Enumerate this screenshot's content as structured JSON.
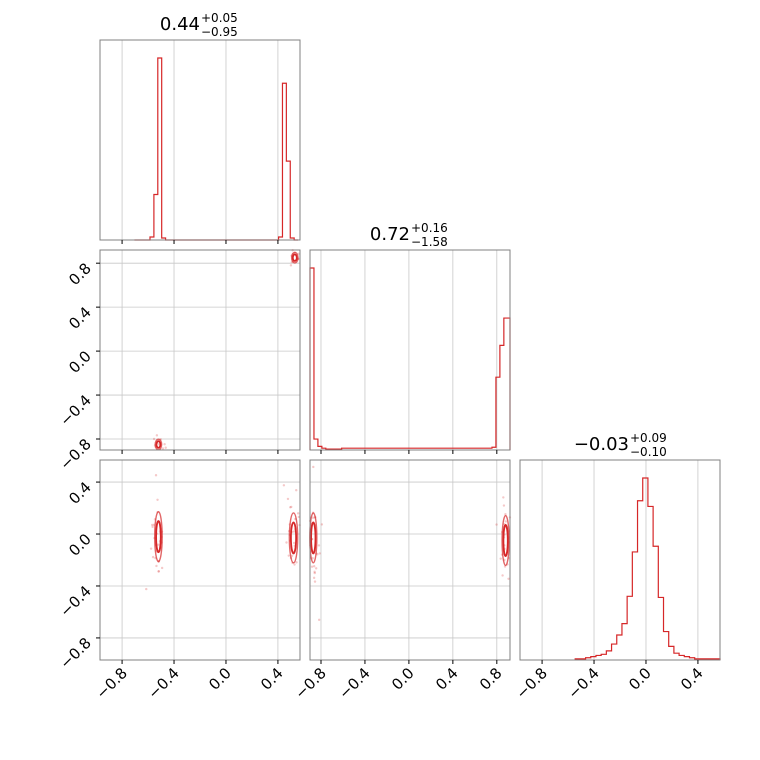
{
  "chart_data": {
    "type": "corner",
    "color": "#d62728",
    "grid": true,
    "params": [
      {
        "title": "0.44",
        "upper": "+0.05",
        "lower": "−0.95",
        "range": [
          -0.97,
          0.57
        ],
        "ticks": [
          -0.8,
          -0.4,
          0.0,
          0.4
        ],
        "tick_labels": [
          "−0.8",
          "−0.4",
          "0.0",
          "0.4"
        ]
      },
      {
        "title": "0.72",
        "upper": "+0.16",
        "lower": "−1.58",
        "range": [
          -0.9,
          0.92
        ],
        "ticks": [
          -0.8,
          -0.4,
          0.0,
          0.4,
          0.8
        ],
        "tick_labels": [
          "−0.8",
          "−0.4",
          "0.0",
          "0.4",
          "0.8"
        ]
      },
      {
        "title": "−0.03",
        "upper": "+0.09",
        "lower": "−0.10",
        "range": [
          -0.97,
          0.57
        ],
        "ticks": [
          -0.8,
          -0.4,
          0.0,
          0.4
        ],
        "tick_labels": [
          "−0.8",
          "−0.4",
          "0.0",
          "0.4"
        ]
      }
    ],
    "histograms": [
      {
        "param": 0,
        "edges": [
          -0.705,
          -0.675,
          -0.645,
          -0.615,
          -0.585,
          -0.555,
          -0.525,
          -0.495,
          -0.465,
          -0.435,
          -0.405,
          0.405,
          0.435,
          0.465,
          0.495,
          0.525,
          0.555
        ],
        "counts": [
          0,
          0,
          0,
          0,
          3,
          45,
          180,
          2,
          0,
          0,
          0,
          3,
          155,
          78,
          2,
          0
        ]
      },
      {
        "param": 1,
        "edges": [
          -0.9,
          -0.864,
          -0.828,
          -0.792,
          -0.756,
          -0.72,
          -0.684,
          -0.648,
          -0.612,
          0.756,
          0.792,
          0.828,
          0.864,
          0.9,
          0.92
        ],
        "counts": [
          200,
          12,
          4,
          2,
          1,
          1,
          1,
          1,
          2,
          3,
          80,
          115,
          145,
          145
        ]
      },
      {
        "param": 2,
        "edges": [
          -0.545,
          -0.505,
          -0.465,
          -0.425,
          -0.385,
          -0.345,
          -0.305,
          -0.265,
          -0.225,
          -0.185,
          -0.145,
          -0.105,
          -0.065,
          -0.025,
          0.015,
          0.055,
          0.095,
          0.135,
          0.175,
          0.215,
          0.255,
          0.295,
          0.335,
          0.375,
          0.415,
          0.455,
          0.495,
          0.535,
          0.57
        ],
        "counts": [
          1,
          1,
          2,
          3,
          4,
          5,
          8,
          14,
          22,
          32,
          56,
          95,
          140,
          160,
          135,
          100,
          55,
          25,
          12,
          6,
          4,
          3,
          2,
          1,
          1,
          1,
          1,
          1
        ]
      }
    ],
    "scatter_clusters": [
      {
        "panel": "p1_vs_p0",
        "x": -0.52,
        "y": -0.85,
        "sx": 0.012,
        "sy": 0.03,
        "n": 12
      },
      {
        "panel": "p1_vs_p0",
        "x": 0.53,
        "y": 0.85,
        "sx": 0.015,
        "sy": 0.03,
        "n": 10
      },
      {
        "panel": "p2_vs_p0",
        "x": -0.52,
        "y": -0.02,
        "sx": 0.018,
        "sy": 0.12,
        "n": 30
      },
      {
        "panel": "p2_vs_p0",
        "x": 0.52,
        "y": -0.03,
        "sx": 0.02,
        "sy": 0.12,
        "n": 30
      },
      {
        "panel": "p2_vs_p1",
        "x": -0.87,
        "y": -0.03,
        "sx": 0.02,
        "sy": 0.12,
        "n": 30
      },
      {
        "panel": "p2_vs_p1",
        "x": 0.88,
        "y": -0.05,
        "sx": 0.02,
        "sy": 0.12,
        "n": 30
      }
    ]
  }
}
